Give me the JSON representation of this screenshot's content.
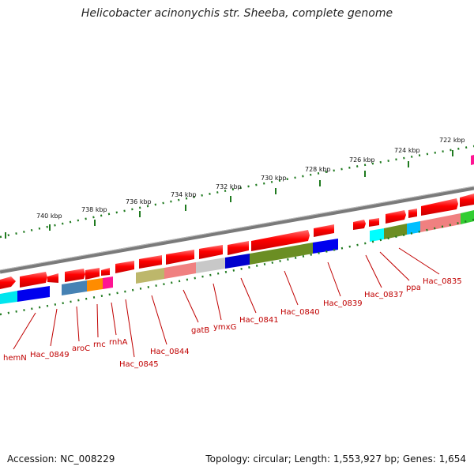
{
  "header": {
    "title": "Helicobacter acinonychis str. Sheeba, complete genome"
  },
  "footer": {
    "accession": "Accession: NC_008229",
    "summary": "Topology: circular; Length: 1,553,927 bp; Genes: 1,654"
  },
  "scale": {
    "tick_labels": [
      "722 kbp",
      "724 kbp",
      "726 kbp",
      "728 kbp",
      "730 kbp",
      "732 kbp",
      "734 kbp",
      "736 kbp",
      "738 kbp",
      "740 kbp"
    ]
  },
  "genes": {
    "labels": [
      "hemN",
      "Hac_0849",
      "aroC",
      "rnc",
      "rnhA",
      "Hac_0845",
      "Hac_0844",
      "gatB",
      "ymxG",
      "Hac_0841",
      "Hac_0840",
      "Hac_0839",
      "Hac_0837",
      "ppa",
      "Hac_0835"
    ]
  },
  "colors": {
    "forward_cds": "#ff0000",
    "backbone": "#808080",
    "tick": "#006400",
    "label": "#c00000"
  }
}
